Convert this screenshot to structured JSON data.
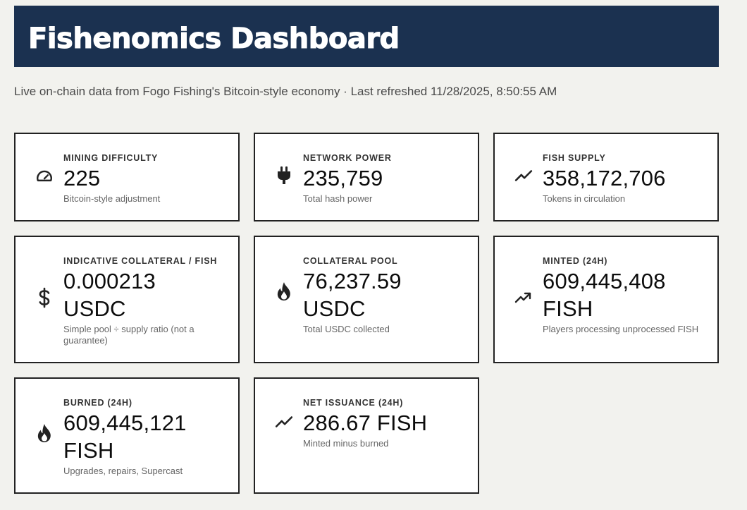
{
  "header": {
    "title": "Fishenomics Dashboard"
  },
  "subtitle": "Live on-chain data from Fogo Fishing's Bitcoin-style economy · Last refreshed 11/28/2025, 8:50:55 AM",
  "cards": [
    {
      "label": "MINING DIFFICULTY",
      "value": "225",
      "description": "Bitcoin-style adjustment",
      "icon": "gauge-icon"
    },
    {
      "label": "NETWORK POWER",
      "value": "235,759",
      "description": "Total hash power",
      "icon": "plug-icon"
    },
    {
      "label": "FISH SUPPLY",
      "value": "358,172,706",
      "description": "Tokens in circulation",
      "icon": "trend-line-icon"
    },
    {
      "label": "INDICATIVE COLLATERAL / FISH",
      "value": "0.000213 USDC",
      "description": "Simple pool ÷ supply ratio (not a guarantee)",
      "icon": "dollar-icon"
    },
    {
      "label": "COLLATERAL POOL",
      "value": "76,237.59 USDC",
      "description": "Total USDC collected",
      "icon": "flame-icon"
    },
    {
      "label": "MINTED (24H)",
      "value": "609,445,408 FISH",
      "description": "Players processing unprocessed FISH",
      "icon": "trending-up-icon"
    },
    {
      "label": "BURNED (24H)",
      "value": "609,445,121 FISH",
      "description": "Upgrades, repairs, Supercast",
      "icon": "flame-icon"
    },
    {
      "label": "NET ISSUANCE (24H)",
      "value": "286.67 FISH",
      "description": "Minted minus burned",
      "icon": "trend-line-icon"
    }
  ]
}
